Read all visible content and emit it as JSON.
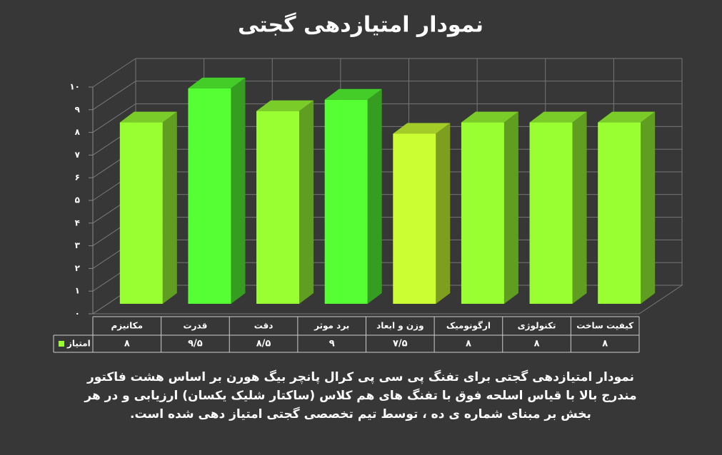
{
  "chart_data": {
    "type": "bar3d",
    "title": "نمودار امتیازدهی گجتی",
    "categories": [
      "مکانیزم",
      "قدرت",
      "دقت",
      "برد موثر",
      "وزن و ابعاد",
      "ارگونومیک",
      "تکنولوژی",
      "کیفیت ساخت"
    ],
    "series": [
      {
        "name": "امتیاز",
        "color": "#99ff33",
        "colors": [
          "#99ff33",
          "#55ff33",
          "#99ff33",
          "#55ff33",
          "#ccff33",
          "#99ff33",
          "#99ff33",
          "#99ff33"
        ],
        "values": [
          8,
          9.5,
          8.5,
          9,
          7.5,
          8,
          8,
          8
        ],
        "value_labels": [
          "۸",
          "۹/۵",
          "۸/۵",
          "۹",
          "۷/۵",
          "۸",
          "۸",
          "۸"
        ]
      }
    ],
    "ylim": [
      0,
      10
    ],
    "yticks": [
      {
        "value": 0,
        "label": "۰"
      },
      {
        "value": 1,
        "label": "۱"
      },
      {
        "value": 2,
        "label": "۲"
      },
      {
        "value": 3,
        "label": "۳"
      },
      {
        "value": 4,
        "label": "۴"
      },
      {
        "value": 5,
        "label": "۵"
      },
      {
        "value": 6,
        "label": "۶"
      },
      {
        "value": 7,
        "label": "۷"
      },
      {
        "value": 8,
        "label": "۸"
      },
      {
        "value": 9,
        "label": "۹"
      },
      {
        "value": 10,
        "label": "۱۰"
      }
    ],
    "grid": true,
    "caption": "نمودار امتیازدهی گجتی برای تفنگ پی سی پی کرال پانچر بیگ هورن بر اساس هشت فاکتور مندرج بالا با قیاس اسلحه فوق با تفنگ های هم کلاس (ساکتار شلیک یکسان) ارزیابی و در هر بخش بر مبنای شماره ی ده ، توسط تیم تخصصی گجتی امتیاز دهی شده است."
  }
}
